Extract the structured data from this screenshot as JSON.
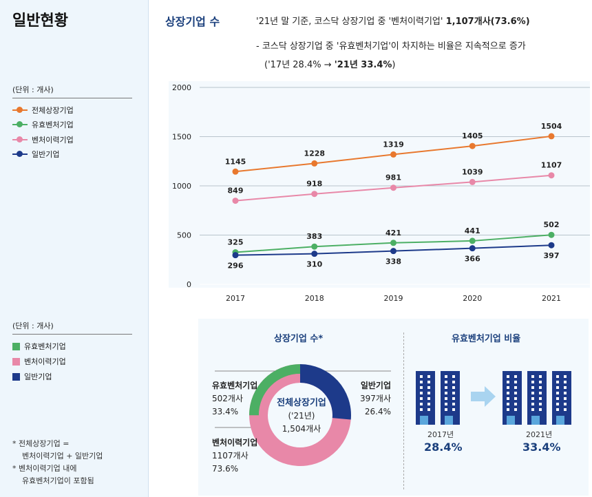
{
  "sidebar": {
    "title": "일반현황",
    "unit1": "(단위 : 개사)",
    "unit2": "(단위 : 개사)",
    "legend_lines": [
      "전체상장기업",
      "유효벤처기업",
      "벤처이력기업",
      "일반기업"
    ],
    "legend_boxes": [
      "유효벤처기업",
      "벤처이력기업",
      "일반기업"
    ],
    "notes": [
      "* 전체상장기업 =",
      "벤처이력기업 + 일반기업",
      "* 벤처이력기업 내에",
      "유효벤처기업이 포함됨"
    ]
  },
  "header": {
    "title": "상장기업 수",
    "line1_a": "'21년 말 기준, 코스닥 상장기업 중 '벤처이력기업' ",
    "line1_b": "1,107개사(73.6%)",
    "line2": "- 코스닥 상장기업 중 '유효벤처기업'이 차지하는 비율은 지속적으로 증가",
    "line3_a": "('17년 28.4% → ",
    "line3_b": "'21년 33.4%",
    ")": ")"
  },
  "colors": {
    "전체상장기업": "#e8782e",
    "유효벤처기업": "#4caf64",
    "벤처이력기업": "#e888a8",
    "일반기업": "#1d3a8a"
  },
  "chart_data": [
    {
      "type": "line",
      "categories": [
        "2017",
        "2018",
        "2019",
        "2020",
        "2021"
      ],
      "ylim": [
        0,
        2000
      ],
      "yticks": [
        "0",
        "500",
        "1000",
        "1500",
        "2000"
      ],
      "grid": true,
      "series": [
        {
          "name": "전체상장기업",
          "values": [
            1145,
            1228,
            1319,
            1405,
            1504
          ]
        },
        {
          "name": "유효벤처기업",
          "values": [
            325,
            383,
            421,
            441,
            502
          ]
        },
        {
          "name": "벤처이력기업",
          "values": [
            849,
            918,
            981,
            1039,
            1107
          ]
        },
        {
          "name": "일반기업",
          "values": [
            296,
            310,
            338,
            366,
            397
          ]
        }
      ]
    },
    {
      "type": "pie",
      "title": "상장기업 수*",
      "center": [
        "전체상장기업",
        "('21년)",
        "1,504개사"
      ],
      "slices": [
        {
          "name": "유효벤처기업",
          "count": "502개사",
          "pct": "33.4%",
          "value": 33.4
        },
        {
          "name": "일반기업",
          "count": "397개사",
          "pct": "26.4%",
          "value": 26.4
        },
        {
          "name": "벤처이력기업",
          "count": "1107개사",
          "pct": "73.6%",
          "value": 73.6
        }
      ]
    }
  ],
  "ratio": {
    "title": "유효벤처기업 비율",
    "y1": "2017년",
    "p1": "28.4%",
    "y2": "2021년",
    "p2": "33.4%"
  }
}
